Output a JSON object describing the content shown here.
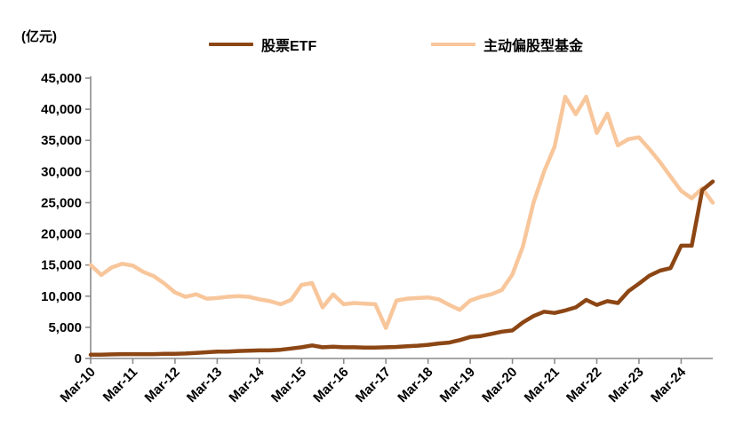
{
  "unit_label": "(亿元)",
  "chart_data": {
    "type": "line",
    "title": "",
    "unit": "亿元",
    "grid": false,
    "legend_position": "top",
    "axis_color": "#8c8c8c",
    "ylim": [
      0,
      45000
    ],
    "y_ticks": [
      0,
      5000,
      10000,
      15000,
      20000,
      25000,
      30000,
      35000,
      40000,
      45000
    ],
    "y_tick_labels": [
      "0",
      "5,000",
      "10,000",
      "15,000",
      "20,000",
      "25,000",
      "30,000",
      "35,000",
      "40,000",
      "45,000"
    ],
    "x_tick_labels": [
      "Mar-10",
      "Mar-11",
      "Mar-12",
      "Mar-13",
      "Mar-14",
      "Mar-15",
      "Mar-16",
      "Mar-17",
      "Mar-18",
      "Mar-19",
      "Mar-20",
      "Mar-21",
      "Mar-22",
      "Mar-23",
      "Mar-24"
    ],
    "x": [
      "Mar-10",
      "Jun-10",
      "Sep-10",
      "Dec-10",
      "Mar-11",
      "Jun-11",
      "Sep-11",
      "Dec-11",
      "Mar-12",
      "Jun-12",
      "Sep-12",
      "Dec-12",
      "Mar-13",
      "Jun-13",
      "Sep-13",
      "Dec-13",
      "Mar-14",
      "Jun-14",
      "Sep-14",
      "Dec-14",
      "Mar-15",
      "Jun-15",
      "Sep-15",
      "Dec-15",
      "Mar-16",
      "Jun-16",
      "Sep-16",
      "Dec-16",
      "Mar-17",
      "Jun-17",
      "Sep-17",
      "Dec-17",
      "Mar-18",
      "Jun-18",
      "Sep-18",
      "Dec-18",
      "Mar-19",
      "Jun-19",
      "Sep-19",
      "Dec-19",
      "Mar-20",
      "Jun-20",
      "Sep-20",
      "Dec-20",
      "Mar-21",
      "Jun-21",
      "Sep-21",
      "Dec-21",
      "Mar-22",
      "Jun-22",
      "Sep-22",
      "Dec-22",
      "Mar-23",
      "Jun-23",
      "Sep-23",
      "Dec-23",
      "Mar-24",
      "Jun-24",
      "Sep-24",
      "Dec-24"
    ],
    "series": [
      {
        "name": "股票ETF",
        "color": "#8C4614",
        "values": [
          600,
          600,
          650,
          700,
          700,
          700,
          700,
          750,
          750,
          800,
          900,
          1000,
          1100,
          1100,
          1200,
          1250,
          1300,
          1300,
          1400,
          1600,
          1800,
          2100,
          1800,
          1900,
          1800,
          1800,
          1750,
          1750,
          1800,
          1850,
          1950,
          2050,
          2200,
          2400,
          2550,
          2950,
          3450,
          3600,
          3950,
          4300,
          4500,
          5800,
          6800,
          7500,
          7300,
          7700,
          8200,
          9400,
          8600,
          9200,
          8900,
          10800,
          12000,
          13300,
          14100,
          14500,
          18100,
          18100,
          27000,
          28400
        ]
      },
      {
        "name": "主动偏股型基金",
        "color": "#F8C69B",
        "values": [
          15000,
          13400,
          14600,
          15200,
          14900,
          13900,
          13200,
          12000,
          10600,
          9900,
          10300,
          9600,
          9700,
          9900,
          10000,
          9900,
          9500,
          9200,
          8700,
          9400,
          11800,
          12100,
          8200,
          10300,
          8700,
          8900,
          8800,
          8700,
          4900,
          9300,
          9600,
          9700,
          9800,
          9500,
          8600,
          7800,
          9300,
          9900,
          10300,
          11000,
          13500,
          18000,
          25000,
          30000,
          34000,
          42000,
          39200,
          42000,
          36200,
          39300,
          34200,
          35200,
          35500,
          33600,
          31500,
          29200,
          26900,
          25700,
          27300,
          25000
        ]
      }
    ]
  }
}
